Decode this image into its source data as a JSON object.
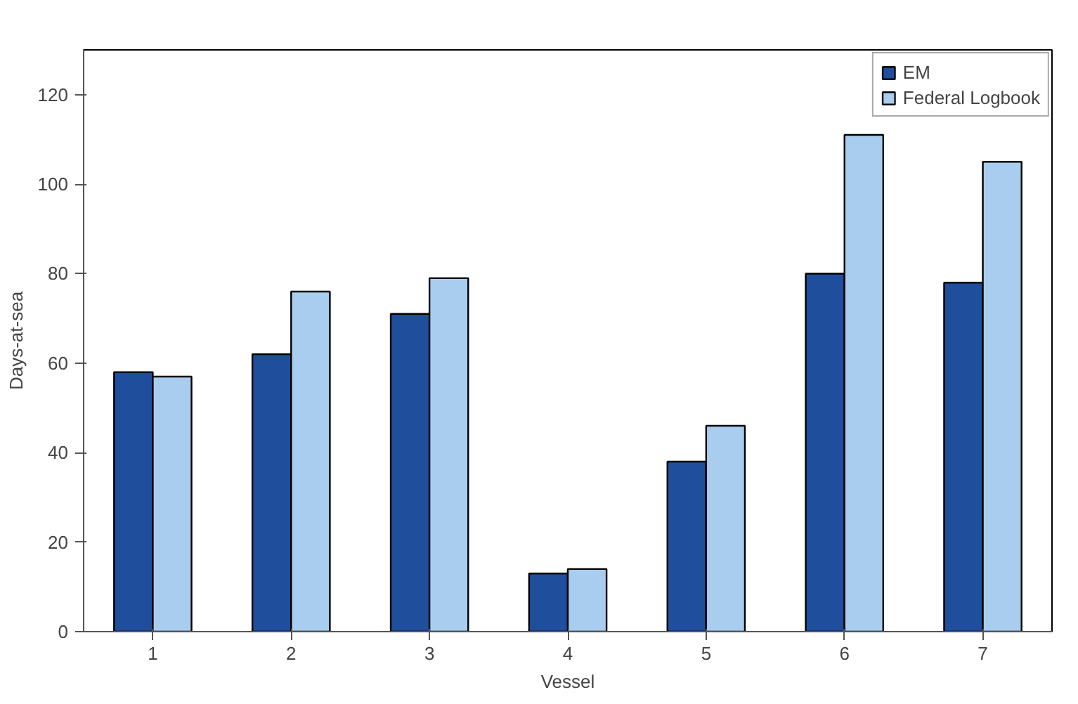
{
  "chart_data": {
    "type": "bar",
    "xlabel": "Vessel",
    "ylabel": "Days-at-sea",
    "categories": [
      "1",
      "2",
      "3",
      "4",
      "5",
      "6",
      "7"
    ],
    "series": [
      {
        "name": "EM",
        "color": "#1f4e9c",
        "values": [
          58,
          62,
          71,
          13,
          38,
          80,
          78
        ]
      },
      {
        "name": "Federal Logbook",
        "color": "#a9cdee",
        "values": [
          57,
          76,
          79,
          14,
          46,
          111,
          105
        ]
      }
    ],
    "ylim": [
      0,
      130
    ],
    "yticks": [
      0,
      20,
      40,
      60,
      80,
      100,
      120
    ],
    "grid": false,
    "legend": "top right"
  }
}
